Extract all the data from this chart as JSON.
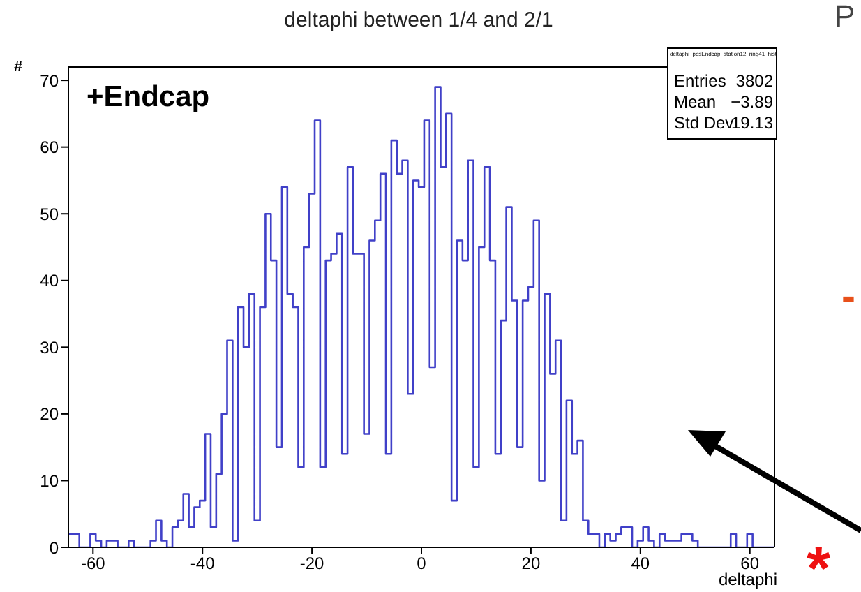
{
  "chart_data": {
    "type": "histogram",
    "title": "deltaphi between 1/4 and 2/1",
    "xlabel": "deltaphi",
    "ylabel": "#",
    "bins": [
      -64.5,
      -63.5,
      -62.5,
      -61.5,
      -60.5,
      -59.5,
      -58.5,
      -57.5,
      -56.5,
      -55.5,
      -54.5,
      -53.5,
      -52.5,
      -51.5,
      -50.5,
      -49.5,
      -48.5,
      -47.5,
      -46.5,
      -45.5,
      -44.5,
      -43.5,
      -42.5,
      -41.5,
      -40.5,
      -39.5,
      -38.5,
      -37.5,
      -36.5,
      -35.5,
      -34.5,
      -33.5,
      -32.5,
      -31.5,
      -30.5,
      -29.5,
      -28.5,
      -27.5,
      -26.5,
      -25.5,
      -24.5,
      -23.5,
      -22.5,
      -21.5,
      -20.5,
      -19.5,
      -18.5,
      -17.5,
      -16.5,
      -15.5,
      -14.5,
      -13.5,
      -12.5,
      -11.5,
      -10.5,
      -9.5,
      -8.5,
      -7.5,
      -6.5,
      -5.5,
      -4.5,
      -3.5,
      -2.5,
      -1.5,
      -0.5,
      0.5,
      1.5,
      2.5,
      3.5,
      4.5,
      5.5,
      6.5,
      7.5,
      8.5,
      9.5,
      10.5,
      11.5,
      12.5,
      13.5,
      14.5,
      15.5,
      16.5,
      17.5,
      18.5,
      19.5,
      20.5,
      21.5,
      22.5,
      23.5,
      24.5,
      25.5,
      26.5,
      27.5,
      28.5,
      29.5,
      30.5,
      31.5,
      32.5,
      33.5,
      34.5,
      35.5,
      36.5,
      37.5,
      38.5,
      39.5,
      40.5,
      41.5,
      42.5,
      43.5,
      44.5,
      45.5,
      46.5,
      47.5,
      48.5,
      49.5,
      50.5,
      51.5,
      52.5,
      53.5,
      54.5,
      55.5,
      56.5,
      57.5,
      58.5,
      59.5,
      60.5,
      61.5,
      62.5,
      63.5,
      64.5
    ],
    "values": [
      2,
      2,
      0,
      0,
      2,
      1,
      0,
      1,
      1,
      0,
      0,
      1,
      0,
      0,
      0,
      1,
      4,
      1,
      0,
      3,
      4,
      8,
      3,
      6,
      7,
      17,
      3,
      11,
      20,
      31,
      1,
      36,
      30,
      38,
      4,
      36,
      50,
      43,
      15,
      54,
      38,
      36,
      12,
      45,
      53,
      64,
      12,
      43,
      44,
      47,
      14,
      57,
      44,
      44,
      17,
      46,
      49,
      56,
      14,
      61,
      56,
      58,
      23,
      55,
      54,
      64,
      27,
      69,
      57,
      65,
      7,
      46,
      43,
      58,
      12,
      45,
      57,
      43,
      14,
      34,
      51,
      37,
      15,
      37,
      39,
      49,
      10,
      38,
      26,
      31,
      4,
      22,
      14,
      16,
      4,
      2,
      2,
      0,
      2,
      1,
      2,
      3,
      3,
      0,
      1,
      3,
      1,
      0,
      2,
      1,
      1,
      1,
      2,
      2,
      1,
      0,
      0,
      0,
      0,
      0,
      0,
      2,
      0,
      0,
      2,
      0,
      0,
      0,
      0
    ],
    "color": "#4040c8",
    "xlim": [
      -64.5,
      64.5
    ],
    "xticks": [
      -60,
      -40,
      -20,
      0,
      20,
      40,
      60
    ],
    "ylim": [
      0,
      72
    ],
    "yticks": [
      0,
      10,
      20,
      30,
      40,
      50,
      60,
      70
    ],
    "annotations": [
      "+Endcap",
      "deltaphi_posEndcap_station12_ring41_hist",
      "Entries",
      "3802",
      "Mean",
      "−3.89",
      "Std Dev",
      "19.13",
      "P",
      "-",
      "*"
    ]
  }
}
